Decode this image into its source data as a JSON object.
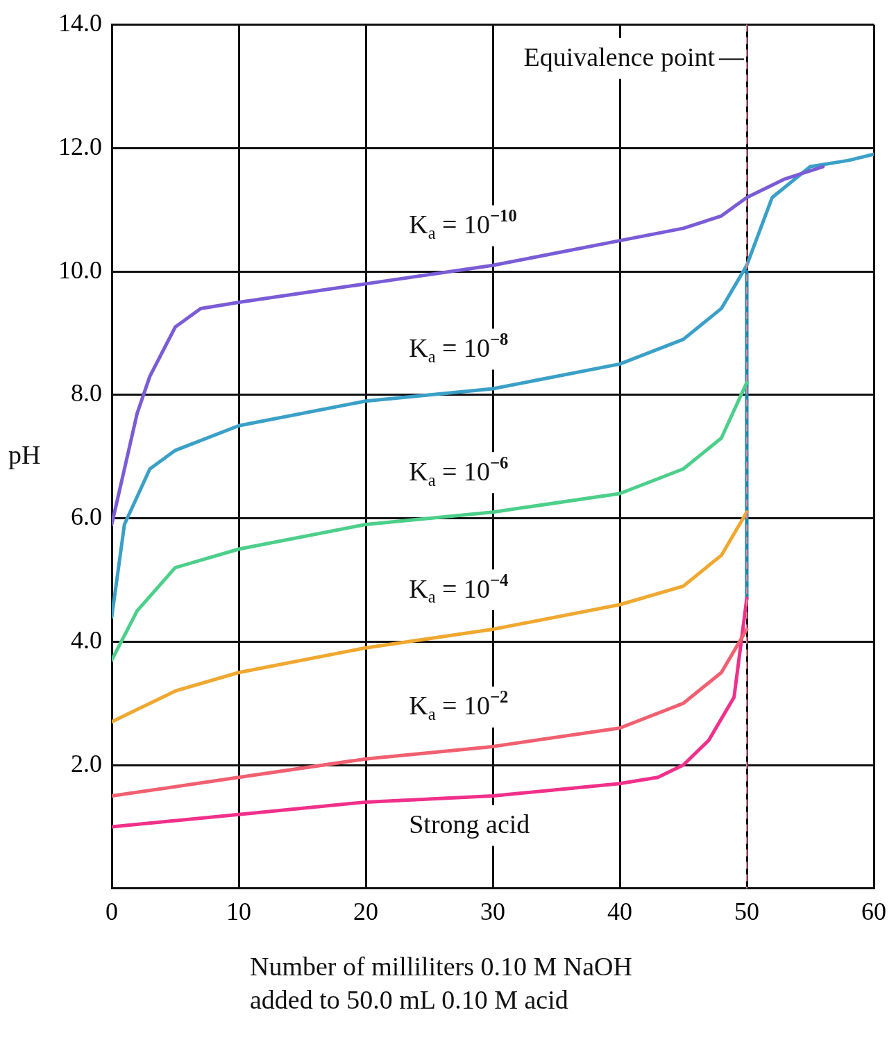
{
  "chart_data": {
    "type": "line",
    "xlabel": "Number of milliliters 0.10 M NaOH\nadded to 50.0 mL 0.10 M acid",
    "ylabel": "pH",
    "xlim": [
      0,
      60
    ],
    "ylim": [
      0,
      14
    ],
    "xticks": [
      0,
      10,
      20,
      30,
      40,
      50,
      60
    ],
    "yticks": [
      {
        "value": 2,
        "label": "2.0"
      },
      {
        "value": 4,
        "label": "4.0"
      },
      {
        "value": 6,
        "label": "6.0"
      },
      {
        "value": 8,
        "label": "8.0"
      },
      {
        "value": 10,
        "label": "10.0"
      },
      {
        "value": 12,
        "label": "12.0"
      },
      {
        "value": 14,
        "label": "14.0"
      }
    ],
    "grid": true,
    "legend": false,
    "marker": "none",
    "series": [
      {
        "name": "K$_{a}$ = 10$^{−10}$",
        "color": "#7a5cd6",
        "x": [
          0,
          1,
          2,
          3,
          5,
          7,
          10,
          20,
          30,
          40,
          45,
          48,
          50,
          53,
          56
        ],
        "values": [
          5.9,
          6.8,
          7.7,
          8.3,
          9.1,
          9.4,
          9.5,
          9.8,
          10.1,
          10.5,
          10.7,
          10.9,
          11.2,
          11.5,
          11.7
        ]
      },
      {
        "name": "K$_{a}$ = 10$^{−8}$",
        "color": "#3aa0c8",
        "x": [
          0,
          1,
          3,
          5,
          10,
          20,
          30,
          40,
          45,
          48,
          50,
          52,
          55,
          58,
          60
        ],
        "values": [
          4.4,
          5.9,
          6.8,
          7.1,
          7.5,
          7.9,
          8.1,
          8.5,
          8.9,
          9.4,
          10.1,
          11.2,
          11.7,
          11.8,
          11.9
        ]
      },
      {
        "name": "K$_{a}$ = 10$^{−6}$",
        "color": "#4ccf8a",
        "x": [
          0,
          2,
          5,
          10,
          20,
          30,
          40,
          45,
          48,
          50
        ],
        "values": [
          3.7,
          4.5,
          5.2,
          5.5,
          5.9,
          6.1,
          6.4,
          6.8,
          7.3,
          8.2
        ]
      },
      {
        "name": "K$_{a}$ = 10$^{−4}$",
        "color": "#f0a830",
        "x": [
          0,
          2,
          5,
          10,
          20,
          30,
          40,
          45,
          48,
          50
        ],
        "values": [
          2.7,
          2.9,
          3.2,
          3.5,
          3.9,
          4.2,
          4.6,
          4.9,
          5.4,
          6.1
        ]
      },
      {
        "name": "K$_{a}$ = 10$^{−2}$",
        "color": "#f06070",
        "x": [
          0,
          10,
          20,
          30,
          40,
          45,
          48,
          50
        ],
        "values": [
          1.5,
          1.8,
          2.1,
          2.3,
          2.6,
          3.0,
          3.5,
          4.2
        ]
      },
      {
        "name": "Strong acid",
        "color": "#f0308a",
        "x": [
          0,
          10,
          20,
          30,
          40,
          43,
          45,
          47,
          49,
          50
        ],
        "values": [
          1.0,
          1.2,
          1.4,
          1.5,
          1.7,
          1.8,
          2.0,
          2.4,
          3.1,
          4.7
        ]
      },
      {
        "color": "#1f86b0",
        "x": [
          50,
          50
        ],
        "values": [
          4.7,
          10.0
        ]
      }
    ],
    "ref_lines": [
      {
        "axis": "x",
        "value": 50,
        "label": "Equivalence point",
        "color": "#e08898",
        "line_style": "dashed"
      }
    ]
  }
}
